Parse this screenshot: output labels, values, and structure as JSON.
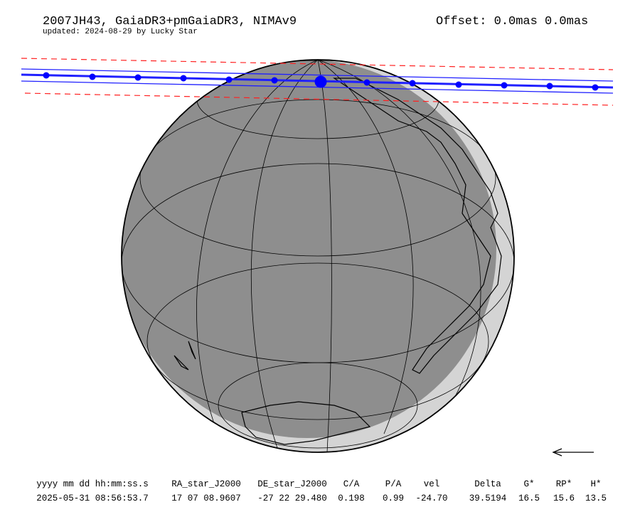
{
  "header": {
    "title": "2007JH43, GaiaDR3+pmGaiaDR3, NIMAv9",
    "updated": "updated: 2024-08-29 by Lucky Star",
    "offset": "Offset: 0.0mas 0.0mas"
  },
  "table": {
    "columns": [
      "yyyy mm dd hh:mm:ss.s",
      "RA_star_J2000",
      "DE_star_J2000",
      "C/A",
      "P/A",
      "vel",
      "Delta",
      "G*",
      "RP*",
      "H*"
    ],
    "rows": [
      [
        "2025-05-31 08:56:53.7",
        "17 07 08.9607",
        "-27 22 29.480",
        "0.198",
        "0.99",
        "-24.70",
        "39.5194",
        "16.5",
        "15.6",
        "13.5"
      ]
    ]
  }
}
